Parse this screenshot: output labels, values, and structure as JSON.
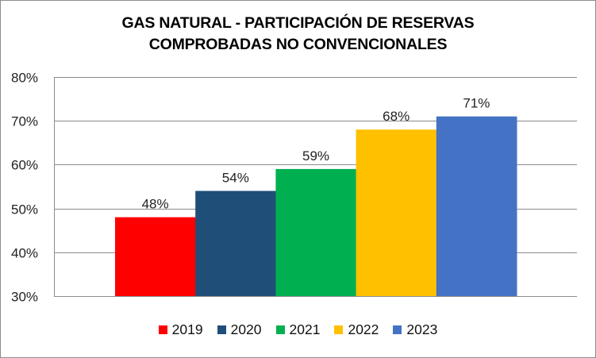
{
  "chart_data": {
    "type": "bar",
    "title_lines": [
      "GAS NATURAL - PARTICIPACIÓN DE RESERVAS",
      "COMPROBADAS NO CONVENCIONALES"
    ],
    "categories": [
      "2019",
      "2020",
      "2021",
      "2022",
      "2023"
    ],
    "values": [
      48,
      54,
      59,
      68,
      71
    ],
    "value_unit": "%",
    "data_labels": [
      "48%",
      "54%",
      "59%",
      "68%",
      "71%"
    ],
    "colors": [
      "#FF0000",
      "#1F4E79",
      "#00B050",
      "#FFC000",
      "#4472C4"
    ],
    "ylim": [
      30,
      80
    ],
    "yticks": [
      30,
      40,
      50,
      60,
      70,
      80
    ],
    "ytick_labels": [
      "30%",
      "40%",
      "50%",
      "60%",
      "70%",
      "80%"
    ],
    "xlabel": "",
    "ylabel": "",
    "grid": true,
    "legend": {
      "placement": "bottom",
      "entries": [
        "2019",
        "2020",
        "2021",
        "2022",
        "2023"
      ]
    }
  }
}
